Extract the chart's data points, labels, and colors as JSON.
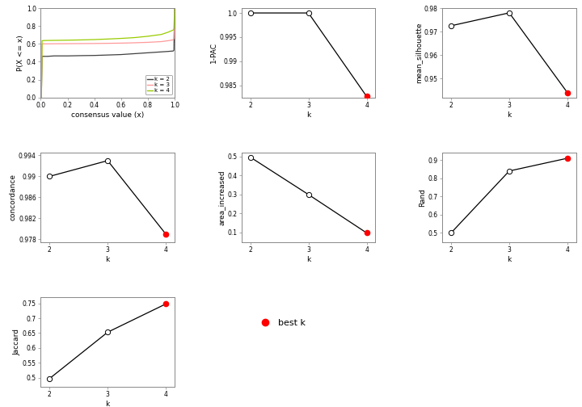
{
  "cdf": {
    "x": [
      0.0,
      0.005,
      0.01,
      0.015,
      0.02,
      0.05,
      0.1,
      0.2,
      0.3,
      0.4,
      0.5,
      0.6,
      0.7,
      0.8,
      0.9,
      0.95,
      0.99,
      0.995,
      1.0
    ],
    "k2": [
      0.0,
      0.0,
      0.46,
      0.46,
      0.46,
      0.46,
      0.465,
      0.465,
      0.468,
      0.47,
      0.475,
      0.48,
      0.49,
      0.5,
      0.51,
      0.515,
      0.52,
      0.53,
      1.0
    ],
    "k3": [
      0.0,
      0.0,
      0.6,
      0.6,
      0.6,
      0.6,
      0.601,
      0.602,
      0.603,
      0.604,
      0.606,
      0.608,
      0.612,
      0.617,
      0.625,
      0.635,
      0.645,
      0.66,
      1.0
    ],
    "k4": [
      0.0,
      0.0,
      0.635,
      0.636,
      0.637,
      0.638,
      0.639,
      0.641,
      0.644,
      0.648,
      0.654,
      0.661,
      0.67,
      0.685,
      0.705,
      0.73,
      0.755,
      0.77,
      1.0
    ],
    "colors": {
      "k2": "#404040",
      "k3": "#FF9999",
      "k4": "#99CC00"
    },
    "xlabel": "consensus value (x)",
    "ylabel": "P(X <= x)",
    "ylim": [
      0.0,
      1.0
    ],
    "xlim": [
      0.0,
      1.0
    ]
  },
  "pac": {
    "k": [
      2,
      3,
      4
    ],
    "values": [
      1.0,
      1.0,
      0.9827
    ],
    "best_k": 4,
    "xlabel": "k",
    "ylabel": "1-PAC",
    "ylim": [
      0.9825,
      1.001
    ],
    "yticks": [
      0.985,
      0.99,
      0.995,
      1.0
    ]
  },
  "silhouette": {
    "k": [
      2,
      3,
      4
    ],
    "values": [
      0.9725,
      0.978,
      0.944
    ],
    "best_k": 4,
    "xlabel": "k",
    "ylabel": "mean_silhouette",
    "ylim": [
      0.942,
      0.98
    ],
    "yticks": [
      0.95,
      0.96,
      0.97,
      0.98
    ]
  },
  "concordance": {
    "k": [
      2,
      3,
      4
    ],
    "values": [
      0.99,
      0.993,
      0.979
    ],
    "best_k": 4,
    "xlabel": "k",
    "ylabel": "concordance",
    "ylim": [
      0.9775,
      0.9945
    ],
    "yticks": [
      0.978,
      0.982,
      0.986,
      0.99,
      0.994
    ]
  },
  "area": {
    "k": [
      2,
      3,
      4
    ],
    "values": [
      0.497,
      0.3,
      0.098
    ],
    "best_k": 4,
    "xlabel": "k",
    "ylabel": "area_increased",
    "ylim": [
      0.05,
      0.52
    ],
    "yticks": [
      0.1,
      0.2,
      0.3,
      0.4,
      0.5
    ]
  },
  "rand": {
    "k": [
      2,
      3,
      4
    ],
    "values": [
      0.5,
      0.84,
      0.91
    ],
    "best_k": 4,
    "xlabel": "k",
    "ylabel": "Rand",
    "ylim": [
      0.45,
      0.94
    ],
    "yticks": [
      0.5,
      0.6,
      0.7,
      0.8,
      0.9
    ]
  },
  "jaccard": {
    "k": [
      2,
      3,
      4
    ],
    "values": [
      0.497,
      0.653,
      0.748
    ],
    "best_k": 4,
    "xlabel": "k",
    "ylabel": "Jaccard",
    "ylim": [
      0.47,
      0.77
    ],
    "yticks": [
      0.5,
      0.55,
      0.6,
      0.65,
      0.7,
      0.75
    ]
  },
  "open_circle_color": "#FFFFFF",
  "open_circle_edge": "#000000",
  "best_k_color": "#FF0000",
  "line_color": "#000000",
  "bg_color": "#FFFFFF",
  "legend_cdf": {
    "labels": [
      "k = 2",
      "k = 3",
      "k = 4"
    ],
    "colors": [
      "#404040",
      "#FF9999",
      "#99CC00"
    ]
  },
  "legend_best": {
    "label": "best k",
    "color": "#FF0000"
  }
}
